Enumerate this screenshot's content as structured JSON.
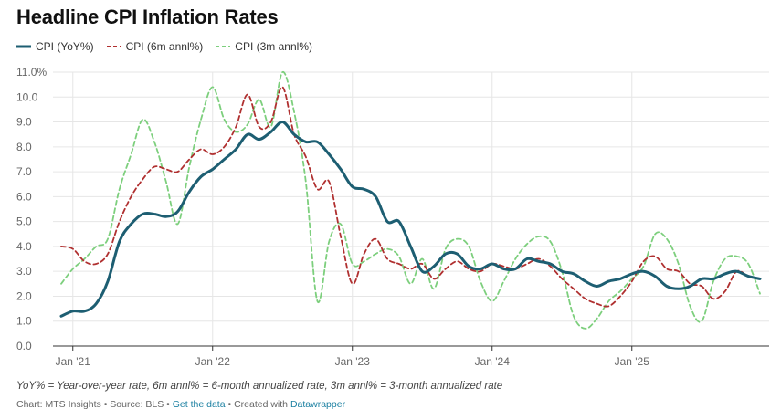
{
  "title": "Headline CPI Inflation Rates",
  "note": "YoY% = Year-over-year rate, 6m annl% = 6-month annualized rate, 3m annl% = 3-month annualized rate",
  "credits": {
    "chart_by": "Chart: MTS Insights",
    "source": "Source: BLS",
    "get_data": "Get the data",
    "created_with": "Created with",
    "tool": "Datawrapper",
    "sep": " • "
  },
  "colors": {
    "yoy": "#1d5e72",
    "six_m": "#b03030",
    "three_m": "#7dcf7d",
    "grid": "#e6e6e6",
    "axis": "#333333"
  },
  "chart_data": {
    "type": "line",
    "title": "Headline CPI Inflation Rates",
    "xlabel": "",
    "ylabel": "",
    "x_ticks": [
      "Jan '21",
      "Jan '22",
      "Jan '23",
      "Jan '24",
      "Jan '25"
    ],
    "y_ticks": [
      "0.0",
      "1.0",
      "2.0",
      "3.0",
      "4.0",
      "5.0",
      "6.0",
      "7.0",
      "8.0",
      "9.0",
      "10.0",
      "11.0%"
    ],
    "ylim": [
      0,
      11
    ],
    "x_start": "Dec 2020",
    "x_end": "Sep 2025",
    "grid": true,
    "legend_position": "top-left",
    "series": [
      {
        "name": "CPI (YoY%)",
        "style": "solid",
        "values": [
          1.2,
          1.4,
          1.4,
          1.7,
          2.6,
          4.2,
          4.9,
          5.3,
          5.3,
          5.2,
          5.4,
          6.2,
          6.8,
          7.1,
          7.5,
          7.9,
          8.5,
          8.3,
          8.6,
          9.0,
          8.5,
          8.2,
          8.2,
          7.7,
          7.1,
          6.4,
          6.3,
          6.0,
          5.0,
          5.0,
          4.0,
          3.0,
          3.2,
          3.7,
          3.7,
          3.2,
          3.1,
          3.3,
          3.1,
          3.1,
          3.5,
          3.4,
          3.3,
          3.0,
          2.9,
          2.6,
          2.4,
          2.6,
          2.7,
          2.9,
          3.0,
          2.8,
          2.4,
          2.3,
          2.4,
          2.7,
          2.7,
          2.9,
          3.0,
          2.8,
          2.7
        ]
      },
      {
        "name": "CPI (6m annl%)",
        "style": "dashed",
        "values": [
          4.0,
          3.9,
          3.4,
          3.3,
          3.7,
          5.0,
          6.0,
          6.7,
          7.2,
          7.1,
          7.0,
          7.5,
          7.9,
          7.7,
          8.0,
          8.8,
          10.1,
          8.8,
          9.0,
          10.4,
          8.5,
          7.6,
          6.3,
          6.6,
          4.4,
          2.5,
          3.7,
          4.3,
          3.5,
          3.3,
          3.1,
          3.3,
          2.7,
          3.1,
          3.4,
          3.1,
          3.0,
          3.3,
          3.2,
          3.1,
          3.3,
          3.5,
          3.2,
          2.7,
          2.3,
          1.9,
          1.7,
          1.6,
          2.0,
          2.6,
          3.4,
          3.6,
          3.1,
          3.0,
          2.5,
          2.4,
          1.9,
          2.2,
          3.0,
          2.8,
          2.7
        ]
      },
      {
        "name": "CPI (3m annl%)",
        "style": "dashed",
        "values": [
          2.5,
          3.1,
          3.5,
          4.0,
          4.3,
          6.3,
          7.7,
          9.1,
          8.2,
          6.6,
          4.9,
          7.2,
          9.1,
          10.4,
          9.1,
          8.6,
          8.9,
          9.9,
          8.8,
          11.0,
          9.4,
          6.6,
          1.8,
          4.2,
          4.9,
          3.3,
          3.4,
          3.7,
          3.9,
          3.6,
          2.5,
          3.5,
          2.3,
          3.9,
          4.3,
          4.0,
          2.6,
          1.8,
          2.6,
          3.5,
          4.1,
          4.4,
          4.2,
          3.0,
          1.2,
          0.7,
          1.1,
          1.8,
          2.2,
          2.7,
          3.2,
          4.5,
          4.3,
          3.3,
          1.6,
          1.0,
          2.6,
          3.5,
          3.6,
          3.3,
          2.1
        ]
      }
    ]
  }
}
